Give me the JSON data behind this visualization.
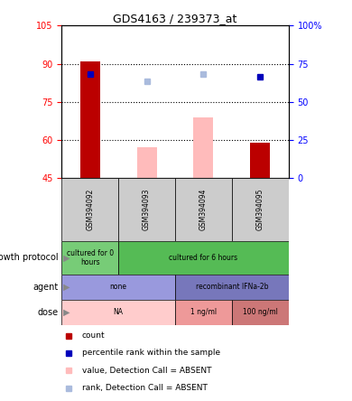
{
  "title": "GDS4163 / 239373_at",
  "samples": [
    "GSM394092",
    "GSM394093",
    "GSM394094",
    "GSM394095"
  ],
  "ylim_left": [
    45,
    105
  ],
  "ylim_right": [
    0,
    100
  ],
  "yticks_left": [
    45,
    60,
    75,
    90,
    105
  ],
  "yticks_right": [
    0,
    25,
    50,
    75,
    100
  ],
  "ytick_labels_right": [
    "0",
    "25",
    "50",
    "75",
    "100%"
  ],
  "bars_dark_red": {
    "GSM394092": 91,
    "GSM394095": 59
  },
  "bars_light_pink": {
    "GSM394093": 57,
    "GSM394094": 69
  },
  "squares_blue_dark": {
    "GSM394092": 86,
    "GSM394095": 85
  },
  "squares_blue_light": {
    "GSM394093": 83,
    "GSM394094": 86
  },
  "bar_bottom": 45,
  "color_dark_red": "#bb0000",
  "color_light_pink": "#ffbbbb",
  "color_dark_blue": "#0000bb",
  "color_light_blue": "#aabbdd",
  "metadata_rows": [
    {
      "label": "growth protocol",
      "cells": [
        {
          "text": "cultured for 0\nhours",
          "colspan": 1,
          "color": "#77cc77"
        },
        {
          "text": "cultured for 6 hours",
          "colspan": 3,
          "color": "#55bb55"
        }
      ]
    },
    {
      "label": "agent",
      "cells": [
        {
          "text": "none",
          "colspan": 2,
          "color": "#9999dd"
        },
        {
          "text": "recombinant IFNa-2b",
          "colspan": 2,
          "color": "#7777bb"
        }
      ]
    },
    {
      "label": "dose",
      "cells": [
        {
          "text": "NA",
          "colspan": 2,
          "color": "#ffcccc"
        },
        {
          "text": "1 ng/ml",
          "colspan": 1,
          "color": "#ee9999"
        },
        {
          "text": "100 ng/ml",
          "colspan": 1,
          "color": "#cc7777"
        }
      ]
    }
  ],
  "legend_items": [
    {
      "color": "#bb0000",
      "label": "count"
    },
    {
      "color": "#0000bb",
      "label": "percentile rank within the sample"
    },
    {
      "color": "#ffbbbb",
      "label": "value, Detection Call = ABSENT"
    },
    {
      "color": "#aabbdd",
      "label": "rank, Detection Call = ABSENT"
    }
  ],
  "fig_width": 3.9,
  "fig_height": 4.44,
  "dpi": 100
}
